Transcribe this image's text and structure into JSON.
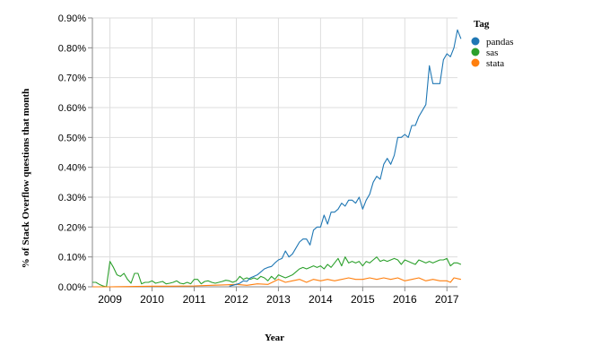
{
  "chart_data": {
    "type": "line",
    "xlabel": "Year",
    "ylabel": "% of Stack Overflow questions that month",
    "x_range": [
      "2008-08",
      "2017-04"
    ],
    "ylim": [
      0,
      0.009
    ],
    "y_tick_labels": [
      "0.00%",
      "0.10%",
      "0.20%",
      "0.30%",
      "0.40%",
      "0.50%",
      "0.60%",
      "0.70%",
      "0.80%",
      "0.90%"
    ],
    "y_ticks": [
      0,
      0.001,
      0.002,
      0.003,
      0.004,
      0.005,
      0.006,
      0.007,
      0.008,
      0.009
    ],
    "x_tick_labels": [
      "2009",
      "2010",
      "2011",
      "2012",
      "2013",
      "2014",
      "2015",
      "2016",
      "2017"
    ],
    "x_ticks": [
      "2009-01",
      "2010-01",
      "2011-01",
      "2012-01",
      "2013-01",
      "2014-01",
      "2015-01",
      "2016-01",
      "2017-01"
    ],
    "grid": true,
    "legend": {
      "title": "Tag",
      "position": "top-right"
    },
    "series": [
      {
        "name": "pandas",
        "color": "#1f77b4",
        "points": [
          [
            "2011-11",
            2e-05
          ],
          [
            "2011-12",
            5e-05
          ],
          [
            "2012-01",
            8e-05
          ],
          [
            "2012-02",
            0.00012
          ],
          [
            "2012-03",
            0.0002
          ],
          [
            "2012-04",
            0.00018
          ],
          [
            "2012-05",
            0.0003
          ],
          [
            "2012-06",
            0.00035
          ],
          [
            "2012-07",
            0.0004
          ],
          [
            "2012-08",
            0.0005
          ],
          [
            "2012-09",
            0.0006
          ],
          [
            "2012-10",
            0.00065
          ],
          [
            "2012-11",
            0.00068
          ],
          [
            "2012-12",
            0.0008
          ],
          [
            "2013-01",
            0.0009
          ],
          [
            "2013-02",
            0.00095
          ],
          [
            "2013-03",
            0.0012
          ],
          [
            "2013-04",
            0.001
          ],
          [
            "2013-05",
            0.0011
          ],
          [
            "2013-06",
            0.0013
          ],
          [
            "2013-07",
            0.0015
          ],
          [
            "2013-08",
            0.0016
          ],
          [
            "2013-09",
            0.0016
          ],
          [
            "2013-10",
            0.0014
          ],
          [
            "2013-11",
            0.0019
          ],
          [
            "2013-12",
            0.002
          ],
          [
            "2014-01",
            0.002
          ],
          [
            "2014-02",
            0.0024
          ],
          [
            "2014-03",
            0.0021
          ],
          [
            "2014-04",
            0.0025
          ],
          [
            "2014-05",
            0.0025
          ],
          [
            "2014-06",
            0.0026
          ],
          [
            "2014-07",
            0.0028
          ],
          [
            "2014-08",
            0.0027
          ],
          [
            "2014-09",
            0.0029
          ],
          [
            "2014-10",
            0.0029
          ],
          [
            "2014-11",
            0.0028
          ],
          [
            "2014-12",
            0.003
          ],
          [
            "2015-01",
            0.0026
          ],
          [
            "2015-02",
            0.0029
          ],
          [
            "2015-03",
            0.0031
          ],
          [
            "2015-04",
            0.0035
          ],
          [
            "2015-05",
            0.0037
          ],
          [
            "2015-06",
            0.0036
          ],
          [
            "2015-07",
            0.0041
          ],
          [
            "2015-08",
            0.0043
          ],
          [
            "2015-09",
            0.0041
          ],
          [
            "2015-10",
            0.0044
          ],
          [
            "2015-11",
            0.005
          ],
          [
            "2015-12",
            0.005
          ],
          [
            "2016-01",
            0.0051
          ],
          [
            "2016-02",
            0.005
          ],
          [
            "2016-03",
            0.0054
          ],
          [
            "2016-04",
            0.0054
          ],
          [
            "2016-05",
            0.0057
          ],
          [
            "2016-06",
            0.0059
          ],
          [
            "2016-07",
            0.0061
          ],
          [
            "2016-08",
            0.0074
          ],
          [
            "2016-09",
            0.0068
          ],
          [
            "2016-10",
            0.0068
          ],
          [
            "2016-11",
            0.0068
          ],
          [
            "2016-12",
            0.0076
          ],
          [
            "2017-01",
            0.0078
          ],
          [
            "2017-02",
            0.0077
          ],
          [
            "2017-03",
            0.008
          ],
          [
            "2017-04",
            0.0086
          ],
          [
            "2017-05",
            0.0083
          ]
        ]
      },
      {
        "name": "sas",
        "color": "#2ca02c",
        "points": [
          [
            "2008-08",
            0.00015
          ],
          [
            "2008-09",
            0.00015
          ],
          [
            "2008-10",
            8e-05
          ],
          [
            "2008-11",
            3e-05
          ],
          [
            "2008-12",
            0.0
          ],
          [
            "2009-01",
            0.00085
          ],
          [
            "2009-02",
            0.00065
          ],
          [
            "2009-03",
            0.0004
          ],
          [
            "2009-04",
            0.00035
          ],
          [
            "2009-05",
            0.00045
          ],
          [
            "2009-06",
            0.00025
          ],
          [
            "2009-07",
            0.00012
          ],
          [
            "2009-08",
            0.00045
          ],
          [
            "2009-09",
            0.00045
          ],
          [
            "2009-10",
            0.0001
          ],
          [
            "2009-11",
            0.00015
          ],
          [
            "2009-12",
            0.00015
          ],
          [
            "2010-01",
            0.0002
          ],
          [
            "2010-02",
            0.00012
          ],
          [
            "2010-03",
            0.00015
          ],
          [
            "2010-04",
            0.00018
          ],
          [
            "2010-05",
            0.0001
          ],
          [
            "2010-06",
            0.00012
          ],
          [
            "2010-07",
            0.00015
          ],
          [
            "2010-08",
            0.0002
          ],
          [
            "2010-09",
            0.00012
          ],
          [
            "2010-10",
            0.0001
          ],
          [
            "2010-11",
            0.00015
          ],
          [
            "2010-12",
            0.0001
          ],
          [
            "2011-01",
            0.00025
          ],
          [
            "2011-02",
            0.00025
          ],
          [
            "2011-03",
            0.0001
          ],
          [
            "2011-04",
            0.00018
          ],
          [
            "2011-05",
            0.0002
          ],
          [
            "2011-06",
            0.00015
          ],
          [
            "2011-07",
            0.00012
          ],
          [
            "2011-08",
            0.00015
          ],
          [
            "2011-09",
            0.00018
          ],
          [
            "2011-10",
            0.00022
          ],
          [
            "2011-11",
            0.0002
          ],
          [
            "2011-12",
            0.00015
          ],
          [
            "2012-01",
            0.0002
          ],
          [
            "2012-02",
            0.00035
          ],
          [
            "2012-03",
            0.00025
          ],
          [
            "2012-04",
            0.0003
          ],
          [
            "2012-05",
            0.00025
          ],
          [
            "2012-06",
            0.0003
          ],
          [
            "2012-07",
            0.00025
          ],
          [
            "2012-08",
            0.00035
          ],
          [
            "2012-09",
            0.0003
          ],
          [
            "2012-10",
            0.0002
          ],
          [
            "2012-11",
            0.00035
          ],
          [
            "2012-12",
            0.00025
          ],
          [
            "2013-01",
            0.0004
          ],
          [
            "2013-02",
            0.00035
          ],
          [
            "2013-03",
            0.0003
          ],
          [
            "2013-04",
            0.00035
          ],
          [
            "2013-05",
            0.0004
          ],
          [
            "2013-06",
            0.0005
          ],
          [
            "2013-07",
            0.0006
          ],
          [
            "2013-08",
            0.00065
          ],
          [
            "2013-09",
            0.0006
          ],
          [
            "2013-10",
            0.00065
          ],
          [
            "2013-11",
            0.0007
          ],
          [
            "2013-12",
            0.00065
          ],
          [
            "2014-01",
            0.0007
          ],
          [
            "2014-02",
            0.0006
          ],
          [
            "2014-03",
            0.00075
          ],
          [
            "2014-04",
            0.00065
          ],
          [
            "2014-05",
            0.0008
          ],
          [
            "2014-06",
            0.00095
          ],
          [
            "2014-07",
            0.0007
          ],
          [
            "2014-08",
            0.001
          ],
          [
            "2014-09",
            0.0008
          ],
          [
            "2014-10",
            0.00085
          ],
          [
            "2014-11",
            0.0008
          ],
          [
            "2014-12",
            0.00085
          ],
          [
            "2015-01",
            0.0007
          ],
          [
            "2015-02",
            0.00085
          ],
          [
            "2015-03",
            0.0008
          ],
          [
            "2015-04",
            0.0009
          ],
          [
            "2015-05",
            0.001
          ],
          [
            "2015-06",
            0.00085
          ],
          [
            "2015-07",
            0.0009
          ],
          [
            "2015-08",
            0.00085
          ],
          [
            "2015-09",
            0.0009
          ],
          [
            "2015-10",
            0.00095
          ],
          [
            "2015-11",
            0.0009
          ],
          [
            "2015-12",
            0.00075
          ],
          [
            "2016-01",
            0.0009
          ],
          [
            "2016-02",
            0.00085
          ],
          [
            "2016-03",
            0.0008
          ],
          [
            "2016-04",
            0.00075
          ],
          [
            "2016-05",
            0.0009
          ],
          [
            "2016-06",
            0.00085
          ],
          [
            "2016-07",
            0.0008
          ],
          [
            "2016-08",
            0.00085
          ],
          [
            "2016-09",
            0.0008
          ],
          [
            "2016-10",
            0.00085
          ],
          [
            "2016-11",
            0.0009
          ],
          [
            "2016-12",
            0.0009
          ],
          [
            "2017-01",
            0.00095
          ],
          [
            "2017-02",
            0.0007
          ],
          [
            "2017-03",
            0.0008
          ],
          [
            "2017-04",
            0.0008
          ],
          [
            "2017-05",
            0.00075
          ]
        ]
      },
      {
        "name": "stata",
        "color": "#ff7f0e",
        "points": [
          [
            "2008-08",
            0.0
          ],
          [
            "2009-01",
            0.0
          ],
          [
            "2010-01",
            2e-05
          ],
          [
            "2010-06",
            2e-05
          ],
          [
            "2011-01",
            3e-05
          ],
          [
            "2011-06",
            5e-05
          ],
          [
            "2012-01",
            8e-05
          ],
          [
            "2012-04",
            5e-05
          ],
          [
            "2012-07",
            0.0001
          ],
          [
            "2012-10",
            8e-05
          ],
          [
            "2013-01",
            0.00025
          ],
          [
            "2013-03",
            0.00015
          ],
          [
            "2013-05",
            0.0002
          ],
          [
            "2013-07",
            0.00025
          ],
          [
            "2013-09",
            0.00015
          ],
          [
            "2013-11",
            0.00025
          ],
          [
            "2014-01",
            0.0002
          ],
          [
            "2014-03",
            0.00025
          ],
          [
            "2014-05",
            0.0002
          ],
          [
            "2014-07",
            0.00025
          ],
          [
            "2014-09",
            0.0003
          ],
          [
            "2014-11",
            0.00025
          ],
          [
            "2015-01",
            0.00025
          ],
          [
            "2015-03",
            0.0003
          ],
          [
            "2015-05",
            0.00025
          ],
          [
            "2015-07",
            0.0003
          ],
          [
            "2015-09",
            0.00025
          ],
          [
            "2015-11",
            0.0003
          ],
          [
            "2016-01",
            0.0002
          ],
          [
            "2016-03",
            0.00025
          ],
          [
            "2016-05",
            0.0003
          ],
          [
            "2016-07",
            0.0002
          ],
          [
            "2016-09",
            0.00025
          ],
          [
            "2016-11",
            0.0002
          ],
          [
            "2017-01",
            0.0002
          ],
          [
            "2017-02",
            0.00015
          ],
          [
            "2017-03",
            0.0003
          ],
          [
            "2017-05",
            0.00025
          ]
        ]
      }
    ]
  }
}
